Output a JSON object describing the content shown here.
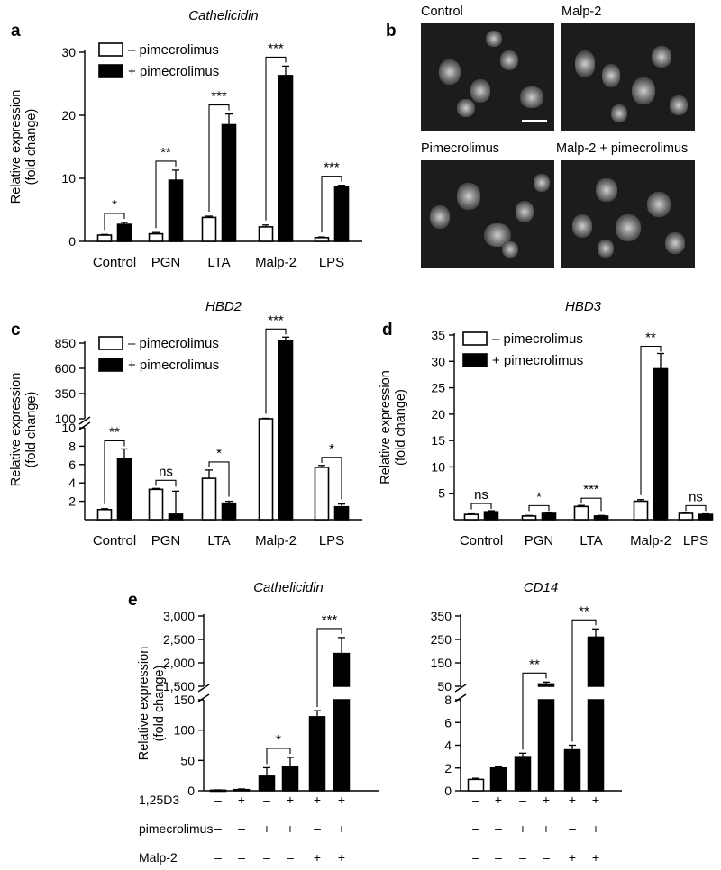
{
  "panels": {
    "a": {
      "letter": "a",
      "chart_data": {
        "type": "bar",
        "title": "Cathelicidin",
        "ylabel": "Relative expression\n(fold change)",
        "ylim": [
          0,
          30
        ],
        "yticks": [
          0,
          10,
          20,
          30
        ],
        "categories": [
          "Control",
          "PGN",
          "LTA",
          "Malp-2",
          "LPS"
        ],
        "series": [
          {
            "name": "– pimecrolimus",
            "fill": "#ffffff",
            "values": [
              1.0,
              1.2,
              3.8,
              2.3,
              0.6
            ],
            "errors": [
              0.1,
              0.2,
              0.2,
              0.3,
              0.1
            ]
          },
          {
            "name": "+ pimecrolimus",
            "fill": "#000000",
            "values": [
              2.7,
              9.7,
              18.5,
              26.3,
              8.7
            ],
            "errors": [
              0.3,
              1.6,
              1.7,
              1.5,
              0.2
            ]
          }
        ],
        "significance": [
          "*",
          "**",
          "***",
          "***",
          "***"
        ]
      }
    },
    "b": {
      "letter": "b",
      "images": [
        "Control",
        "Malp-2",
        "Pimecrolimus",
        "Malp-2 + pimecrolimus"
      ]
    },
    "c": {
      "letter": "c",
      "chart_data": {
        "type": "bar",
        "title": "HBD2",
        "ylabel": "Relative expression\n(fold change)",
        "ylim_lower": [
          0,
          10
        ],
        "ylim_upper": [
          100,
          850
        ],
        "yticks_lower": [
          2,
          4,
          6,
          8,
          10
        ],
        "yticks_upper": [
          100,
          350,
          600,
          850
        ],
        "categories": [
          "Control",
          "PGN",
          "LTA",
          "Malp-2",
          "LPS"
        ],
        "series": [
          {
            "name": "– pimecrolimus",
            "fill": "#ffffff",
            "values": [
              1.1,
              3.3,
              4.5,
              100,
              5.7
            ],
            "errors": [
              0.1,
              0.1,
              0.9,
              5,
              0.2
            ]
          },
          {
            "name": "+ pimecrolimus",
            "fill": "#000000",
            "values": [
              6.6,
              0.6,
              1.8,
              870,
              1.4
            ],
            "errors": [
              1.1,
              2.5,
              0.2,
              40,
              0.3
            ]
          }
        ],
        "significance": [
          "**",
          "ns",
          "*",
          "***",
          "*"
        ]
      }
    },
    "d": {
      "letter": "d",
      "chart_data": {
        "type": "bar",
        "title": "HBD3",
        "ylabel": "Relative expression\n(fold change)",
        "ylim": [
          0,
          35
        ],
        "yticks": [
          5,
          10,
          15,
          20,
          25,
          30,
          35
        ],
        "categories": [
          "Control",
          "PGN",
          "LTA",
          "Malp-2",
          "LPS"
        ],
        "series": [
          {
            "name": "– pimecrolimus",
            "fill": "#ffffff",
            "values": [
              1.0,
              0.7,
              2.5,
              3.5,
              1.2
            ],
            "errors": [
              0.1,
              0.1,
              0.2,
              0.3,
              0.1
            ]
          },
          {
            "name": "+ pimecrolimus",
            "fill": "#000000",
            "values": [
              1.5,
              1.2,
              0.7,
              28.6,
              1.0
            ],
            "errors": [
              0.2,
              0.1,
              0.1,
              2.9,
              0.1
            ]
          }
        ],
        "significance": [
          "ns",
          "*",
          "***",
          "**",
          "ns"
        ]
      }
    },
    "e": {
      "letter": "e",
      "ylabel": "Relative expression\n(fold change)",
      "conditions": [
        {
          "label": "1,25D3",
          "signs": [
            "–",
            "+",
            "–",
            "+",
            "+",
            "+"
          ]
        },
        {
          "label": "pimecrolimus",
          "signs": [
            "–",
            "–",
            "+",
            "+",
            "–",
            "+"
          ]
        },
        {
          "label": "Malp-2",
          "signs": [
            "–",
            "–",
            "–",
            "–",
            "+",
            "+"
          ]
        }
      ],
      "charts": [
        {
          "type": "bar",
          "title": "Cathelicidin",
          "ylim_lower": [
            0,
            150
          ],
          "ylim_upper": [
            1500,
            3000
          ],
          "yticks_lower": [
            0,
            50,
            100,
            150
          ],
          "yticks_upper": [
            1500,
            2000,
            2500,
            3000
          ],
          "ytick_labels_lower": [
            "0",
            "50",
            "100",
            "150"
          ],
          "ytick_labels_upper": [
            "1,500",
            "2,000",
            "2,500",
            "3,000"
          ],
          "values": [
            1,
            2,
            24,
            40,
            122,
            2200
          ],
          "errors": [
            0.5,
            1,
            14,
            15,
            10,
            340
          ],
          "significance": [
            {
              "pair": [
                2,
                3
              ],
              "label": "*"
            },
            {
              "pair": [
                4,
                5
              ],
              "label": "***"
            }
          ]
        },
        {
          "type": "bar",
          "title": "CD14",
          "ylim_lower": [
            0,
            8
          ],
          "ylim_upper": [
            50,
            350
          ],
          "yticks_lower": [
            0,
            2,
            4,
            6,
            8
          ],
          "yticks_upper": [
            50,
            150,
            250,
            350
          ],
          "ytick_labels_lower": [
            "0",
            "2",
            "4",
            "6",
            "8"
          ],
          "ytick_labels_upper": [
            "50",
            "150",
            "250",
            "350"
          ],
          "values": [
            1.0,
            2.0,
            3.0,
            60,
            3.6,
            260
          ],
          "errors": [
            0.1,
            0.1,
            0.3,
            8,
            0.4,
            35
          ],
          "significance": [
            {
              "pair": [
                2,
                3
              ],
              "label": "**"
            },
            {
              "pair": [
                4,
                5
              ],
              "label": "**"
            }
          ]
        }
      ]
    }
  }
}
